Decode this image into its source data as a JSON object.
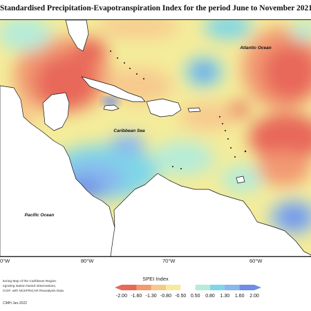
{
  "title": "Standardised Precipitation-Evapotranspiration Index for the period June to November 2021",
  "map_labels": {
    "atlantic": "Atlantic Ocean",
    "caribbean": "Caribbean Sea",
    "pacific": "Pacific Ocean"
  },
  "longitudes": [
    "0°W",
    "80°W",
    "70°W",
    "60°W"
  ],
  "credits": [
    "itoring Map of the Caribbean Region.",
    "egrating station based observations,",
    "ICOF, with NCEP/NCAR Reanalysis Data"
  ],
  "legend": {
    "title": "SPEI Index",
    "ticks": [
      "-2.00",
      "-1.60",
      "-1.30",
      "-0.80",
      "-0.50",
      "0.50",
      "0.80",
      "1.30",
      "1.60",
      "2.00"
    ],
    "colors": [
      "#e8685a",
      "#f29a72",
      "#f7c98e",
      "#f4ec9a",
      "#ffffff",
      "#b6ecd8",
      "#7fd6e8",
      "#8ab7ee",
      "#6d8ee6"
    ]
  },
  "footer": "CIMH Jan-2022",
  "colors": {
    "ocean_base": "#f4ec9a",
    "dry": "#e8685a",
    "wet": "#6d8ee6",
    "land": "#ffffff",
    "coast": "#111111"
  }
}
